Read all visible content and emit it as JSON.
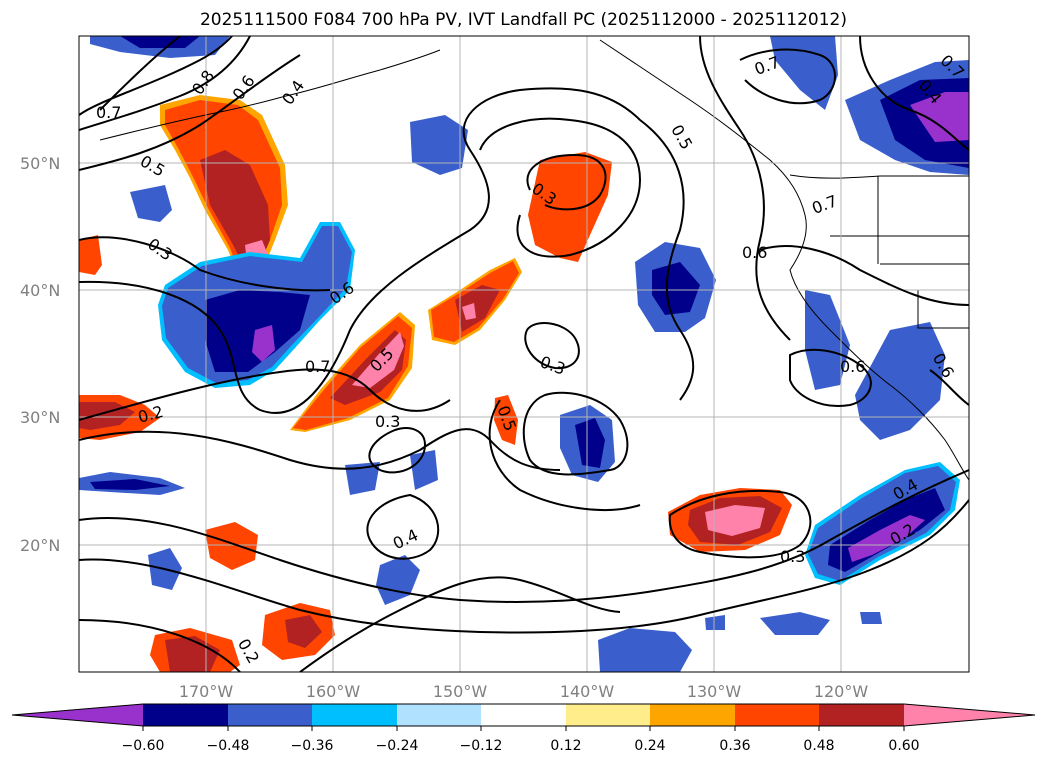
{
  "title": "2025111500 F084 700 hPa PV, IVT Landfall PC (2025112000 - 2025112012)",
  "map": {
    "lat_labels": [
      "50°N",
      "40°N",
      "30°N",
      "20°N"
    ],
    "lon_labels": [
      "170°W",
      "160°W",
      "150°W",
      "140°W",
      "130°W",
      "120°W"
    ],
    "contour_labels": [
      "0.8",
      "0.6",
      "0.4",
      "0.7",
      "0.5",
      "0.3",
      "0.3",
      "0.6",
      "0.7",
      "0.5",
      "0.3",
      "0.3",
      "0.5",
      "0.2",
      "0.4",
      "0.2",
      "0.7",
      "0.5",
      "0.7",
      "0.6",
      "0.6",
      "0.7",
      "0.3",
      "0.4",
      "0.2",
      "0.6",
      "0.4"
    ]
  },
  "colorbar": {
    "colors": [
      "#9932cc",
      "#00008b",
      "#3a5fcd",
      "#00bfff",
      "#b0e2ff",
      "#ffffff",
      "#ffec8b",
      "#ffa500",
      "#ff4500",
      "#b22222",
      "#ff82ab"
    ],
    "ticks": [
      "−0.60",
      "−0.48",
      "−0.36",
      "−0.24",
      "−0.12",
      "0.12",
      "0.24",
      "0.36",
      "0.48",
      "0.60"
    ]
  }
}
